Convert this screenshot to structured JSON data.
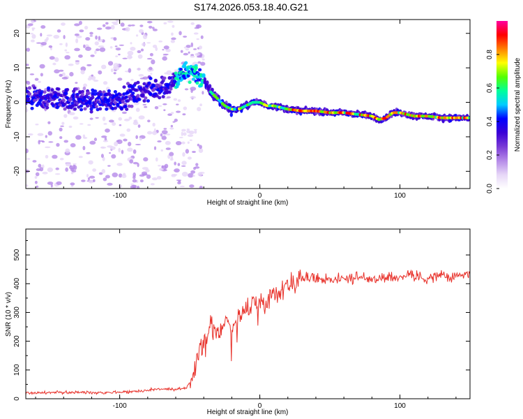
{
  "title": "S174.2026.053.18.40.G21",
  "chart_data": [
    {
      "type": "heatmap",
      "xlabel": "Height of straight line (km)",
      "ylabel": "Frequency (Hz)",
      "xlim": [
        -167,
        150
      ],
      "ylim": [
        -25,
        24
      ],
      "xticks": [
        -100,
        0,
        100
      ],
      "yticks": [
        -20,
        -10,
        0,
        10,
        20
      ],
      "ridge": {
        "x": [
          -167,
          -140,
          -120,
          -100,
          -85,
          -75,
          -65,
          -58,
          -52,
          -48,
          -44,
          -40,
          -35,
          -30,
          -25,
          -20,
          -15,
          -10,
          -5,
          0,
          5,
          10,
          15,
          20,
          30,
          40,
          50,
          60,
          70,
          80,
          85,
          90,
          95,
          100,
          105,
          110,
          120,
          130,
          140,
          150
        ],
        "y": [
          1,
          1,
          0.5,
          1,
          3,
          4,
          5,
          7,
          9,
          9,
          8,
          6,
          3,
          1,
          -1,
          -2,
          -2,
          -1,
          0,
          0,
          -1,
          -1,
          -1.5,
          -2,
          -2.5,
          -2.5,
          -3,
          -3,
          -3.5,
          -4,
          -5,
          -4.5,
          -3,
          -3,
          -3.5,
          -4,
          -4,
          -4.5,
          -4.5,
          -4.5
        ]
      },
      "colorbar": {
        "label": "Normalized spectral amplitude",
        "range": [
          0,
          1
        ],
        "ticks": [
          0.0,
          0.2,
          0.4,
          0.6,
          0.8
        ],
        "tick_labels": [
          "0.0",
          "0.2",
          "0.4",
          "0.6",
          "0.8"
        ],
        "colors": [
          "#ffffff",
          "#e6d6f7",
          "#b58ae8",
          "#7a3bd6",
          "#3a00d6",
          "#0000ff",
          "#00ccff",
          "#00ff9a",
          "#55ff00",
          "#ffff00",
          "#ff8000",
          "#ff0000",
          "#ff00a0"
        ]
      }
    },
    {
      "type": "line",
      "xlabel": "Height of straight line (km)",
      "ylabel": "SNR (10 * v/v)",
      "xlim": [
        -167,
        150
      ],
      "ylim": [
        0,
        590
      ],
      "xticks": [
        -100,
        0,
        100
      ],
      "yticks": [
        0,
        100,
        200,
        300,
        400,
        500
      ],
      "color": "#e8322b",
      "series": [
        {
          "x": [
            -167,
            -140,
            -110,
            -90,
            -80,
            -70,
            -60,
            -52,
            -48,
            -44,
            -40,
            -36,
            -32,
            -28,
            -24,
            -20,
            -16,
            -12,
            -8,
            -4,
            0,
            5,
            10,
            15,
            20,
            25,
            30,
            40,
            50,
            60,
            70,
            80,
            90,
            100,
            105,
            108,
            110,
            115,
            120,
            130,
            135,
            138,
            140,
            145,
            150
          ],
          "y": [
            20,
            22,
            22,
            25,
            30,
            35,
            30,
            40,
            80,
            150,
            200,
            250,
            230,
            240,
            280,
            250,
            280,
            300,
            320,
            340,
            330,
            350,
            360,
            380,
            400,
            410,
            420,
            420,
            415,
            420,
            420,
            415,
            425,
            420,
            430,
            440,
            420,
            425,
            420,
            430,
            420,
            420,
            425,
            430,
            440
          ]
        }
      ]
    }
  ]
}
